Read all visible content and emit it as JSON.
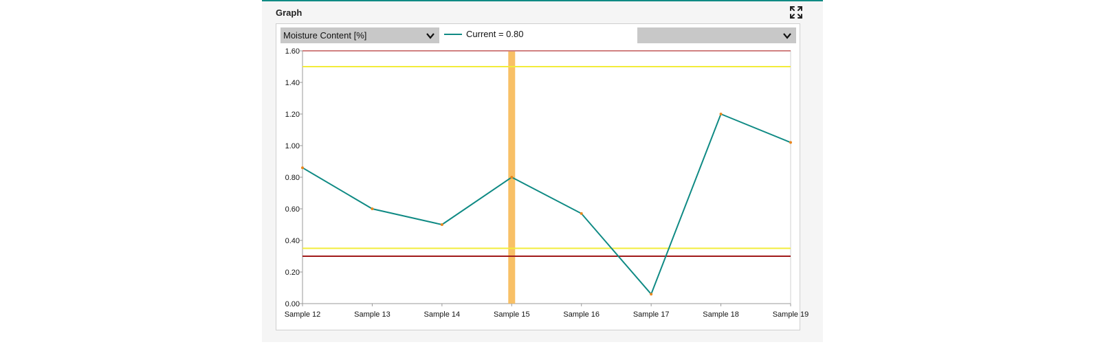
{
  "panel": {
    "title": "Graph",
    "expand_icon": "expand-icon"
  },
  "controls": {
    "measure_select": {
      "value": "Moisture Content [%]",
      "icon": "chevron-down-icon"
    },
    "secondary_select": {
      "value": "",
      "icon": "chevron-down-icon"
    }
  },
  "legend": {
    "label": "Current = 0.80",
    "color": "#0f8a84"
  },
  "chart_data": {
    "type": "line",
    "title": "",
    "xlabel": "",
    "ylabel": "",
    "categories": [
      "Sample 12",
      "Sample 13",
      "Sample 14",
      "Sample 15",
      "Sample 16",
      "Sample 17",
      "Sample 18",
      "Sample 19"
    ],
    "series": [
      {
        "values": [
          0.86,
          0.6,
          0.5,
          0.8,
          0.57,
          0.06,
          1.2,
          1.02
        ],
        "color": "#0f8a84",
        "marker_color": "#e8861e"
      }
    ],
    "ylim": [
      0,
      1.6
    ],
    "yticks": [
      "0.00",
      "0.20",
      "0.40",
      "0.60",
      "0.80",
      "1.00",
      "1.20",
      "1.40",
      "1.60"
    ],
    "reference_lines": [
      {
        "value": 1.6,
        "color": "#d08080"
      },
      {
        "value": 1.5,
        "color": "#f2ec3a"
      },
      {
        "value": 0.35,
        "color": "#f2ec3a"
      },
      {
        "value": 0.3,
        "color": "#a01818"
      }
    ],
    "highlight_category": "Sample 15",
    "highlight_color": "#f7b955",
    "grid": false
  }
}
